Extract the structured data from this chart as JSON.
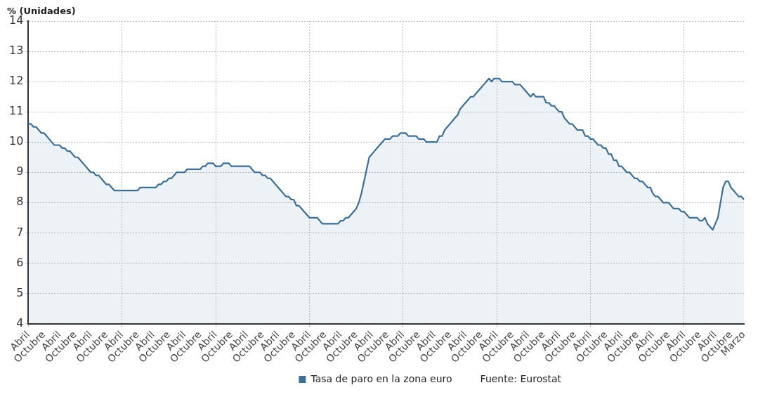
{
  "chart_data": {
    "type": "area",
    "ylabel": "% (Unidades)",
    "categories": [
      "Abril",
      null,
      null,
      null,
      null,
      null,
      "Octubre",
      null,
      null,
      null,
      null,
      null,
      "Abril",
      null,
      null,
      null,
      null,
      null,
      "Octubre",
      null,
      null,
      null,
      null,
      null,
      "Abril",
      null,
      null,
      null,
      null,
      null,
      "Octubre",
      null,
      null,
      null,
      null,
      null,
      "Abril",
      null,
      null,
      null,
      null,
      null,
      "Octubre",
      null,
      null,
      null,
      null,
      null,
      "Abril",
      null,
      null,
      null,
      null,
      null,
      "Octubre",
      null,
      null,
      null,
      null,
      null,
      "Abril",
      null,
      null,
      null,
      null,
      null,
      "Octubre",
      null,
      null,
      null,
      null,
      null,
      "Abril",
      null,
      null,
      null,
      null,
      null,
      "Octubre",
      null,
      null,
      null,
      null,
      null,
      "Abril",
      null,
      null,
      null,
      null,
      null,
      "Octubre",
      null,
      null,
      null,
      null,
      null,
      "Abril",
      null,
      null,
      null,
      null,
      null,
      "Octubre",
      null,
      null,
      null,
      null,
      null,
      "Abril",
      null,
      null,
      null,
      null,
      null,
      "Octubre",
      null,
      null,
      null,
      null,
      null,
      "Abril",
      null,
      null,
      null,
      null,
      null,
      "Octubre",
      null,
      null,
      null,
      null,
      null,
      "Abril",
      null,
      null,
      null,
      null,
      null,
      "Octubre",
      null,
      null,
      null,
      null,
      null,
      "Abril",
      null,
      null,
      null,
      null,
      null,
      "Octubre",
      null,
      null,
      null,
      null,
      null,
      "Abril",
      null,
      null,
      null,
      null,
      null,
      "Octubre",
      null,
      null,
      null,
      null,
      null,
      "Abril",
      null,
      null,
      null,
      null,
      null,
      "Octubre",
      null,
      null,
      null,
      null,
      null,
      "Abril",
      null,
      null,
      null,
      null,
      null,
      "Octubre",
      null,
      null,
      null,
      null,
      null,
      "Abril",
      null,
      null,
      null,
      null,
      null,
      "Octubre",
      null,
      null,
      null,
      null,
      null,
      "Abril",
      null,
      null,
      null,
      null,
      null,
      "Octubre",
      null,
      null,
      null,
      null,
      null,
      "Abril",
      null,
      null,
      null,
      null,
      null,
      "Octubre",
      null,
      null,
      null,
      null,
      null,
      "Abril",
      null,
      null,
      null,
      null,
      null,
      "Octubre",
      null,
      null,
      null,
      null,
      null,
      "Abril",
      null,
      null,
      null,
      null,
      null,
      "Octubre",
      null,
      null,
      null,
      null,
      null,
      "Abril",
      null,
      null,
      null,
      null,
      null,
      "Octubre",
      null,
      null,
      null,
      null,
      null,
      "Abril",
      null,
      null,
      null,
      null,
      null,
      "Octubre",
      null,
      null,
      null,
      null,
      "Marzo"
    ],
    "series": [
      {
        "name": "Tasa de paro en la zona euro",
        "color": "#3c6f98",
        "values": [
          10.6,
          10.6,
          10.5,
          10.5,
          10.4,
          10.3,
          10.3,
          10.2,
          10.1,
          10.0,
          9.9,
          9.9,
          9.9,
          9.8,
          9.8,
          9.7,
          9.7,
          9.6,
          9.5,
          9.5,
          9.4,
          9.3,
          9.2,
          9.1,
          9.0,
          9.0,
          8.9,
          8.9,
          8.8,
          8.7,
          8.6,
          8.6,
          8.5,
          8.4,
          8.4,
          8.4,
          8.4,
          8.4,
          8.4,
          8.4,
          8.4,
          8.4,
          8.4,
          8.5,
          8.5,
          8.5,
          8.5,
          8.5,
          8.5,
          8.5,
          8.6,
          8.6,
          8.7,
          8.7,
          8.8,
          8.8,
          8.9,
          9.0,
          9.0,
          9.0,
          9.0,
          9.1,
          9.1,
          9.1,
          9.1,
          9.1,
          9.1,
          9.2,
          9.2,
          9.3,
          9.3,
          9.3,
          9.2,
          9.2,
          9.2,
          9.3,
          9.3,
          9.3,
          9.2,
          9.2,
          9.2,
          9.2,
          9.2,
          9.2,
          9.2,
          9.2,
          9.1,
          9.0,
          9.0,
          9.0,
          8.9,
          8.9,
          8.8,
          8.8,
          8.7,
          8.6,
          8.5,
          8.4,
          8.3,
          8.2,
          8.2,
          8.1,
          8.1,
          7.9,
          7.9,
          7.8,
          7.7,
          7.6,
          7.5,
          7.5,
          7.5,
          7.5,
          7.4,
          7.3,
          7.3,
          7.3,
          7.3,
          7.3,
          7.3,
          7.3,
          7.4,
          7.4,
          7.5,
          7.5,
          7.6,
          7.7,
          7.8,
          8.0,
          8.3,
          8.7,
          9.1,
          9.5,
          9.6,
          9.7,
          9.8,
          9.9,
          10.0,
          10.1,
          10.1,
          10.1,
          10.2,
          10.2,
          10.2,
          10.3,
          10.3,
          10.3,
          10.2,
          10.2,
          10.2,
          10.2,
          10.1,
          10.1,
          10.1,
          10.0,
          10.0,
          10.0,
          10.0,
          10.0,
          10.2,
          10.2,
          10.4,
          10.5,
          10.6,
          10.7,
          10.8,
          10.9,
          11.1,
          11.2,
          11.3,
          11.4,
          11.5,
          11.5,
          11.6,
          11.7,
          11.8,
          11.9,
          12.0,
          12.1,
          12.0,
          12.1,
          12.1,
          12.1,
          12.0,
          12.0,
          12.0,
          12.0,
          12.0,
          11.9,
          11.9,
          11.9,
          11.8,
          11.7,
          11.6,
          11.5,
          11.6,
          11.5,
          11.5,
          11.5,
          11.5,
          11.3,
          11.3,
          11.2,
          11.2,
          11.1,
          11.0,
          11.0,
          10.8,
          10.7,
          10.6,
          10.6,
          10.5,
          10.4,
          10.4,
          10.4,
          10.2,
          10.2,
          10.1,
          10.1,
          10.0,
          9.9,
          9.9,
          9.8,
          9.8,
          9.6,
          9.6,
          9.4,
          9.4,
          9.2,
          9.2,
          9.1,
          9.0,
          9.0,
          8.9,
          8.8,
          8.8,
          8.7,
          8.7,
          8.6,
          8.5,
          8.5,
          8.3,
          8.2,
          8.2,
          8.1,
          8.0,
          8.0,
          8.0,
          7.9,
          7.8,
          7.8,
          7.8,
          7.7,
          7.7,
          7.6,
          7.5,
          7.5,
          7.5,
          7.5,
          7.4,
          7.4,
          7.5,
          7.3,
          7.2,
          7.1,
          7.3,
          7.5,
          8.0,
          8.5,
          8.7,
          8.7,
          8.5,
          8.4,
          8.3,
          8.2,
          8.2,
          8.1
        ]
      }
    ],
    "ylim": [
      4,
      14
    ],
    "yticks": [
      4,
      5,
      6,
      7,
      8,
      9,
      10,
      11,
      12,
      13,
      14
    ],
    "grid": true,
    "legend": "bottom",
    "marker": "none",
    "line_style": "solid",
    "annotations": [
      "Fuente: Eurostat"
    ]
  }
}
